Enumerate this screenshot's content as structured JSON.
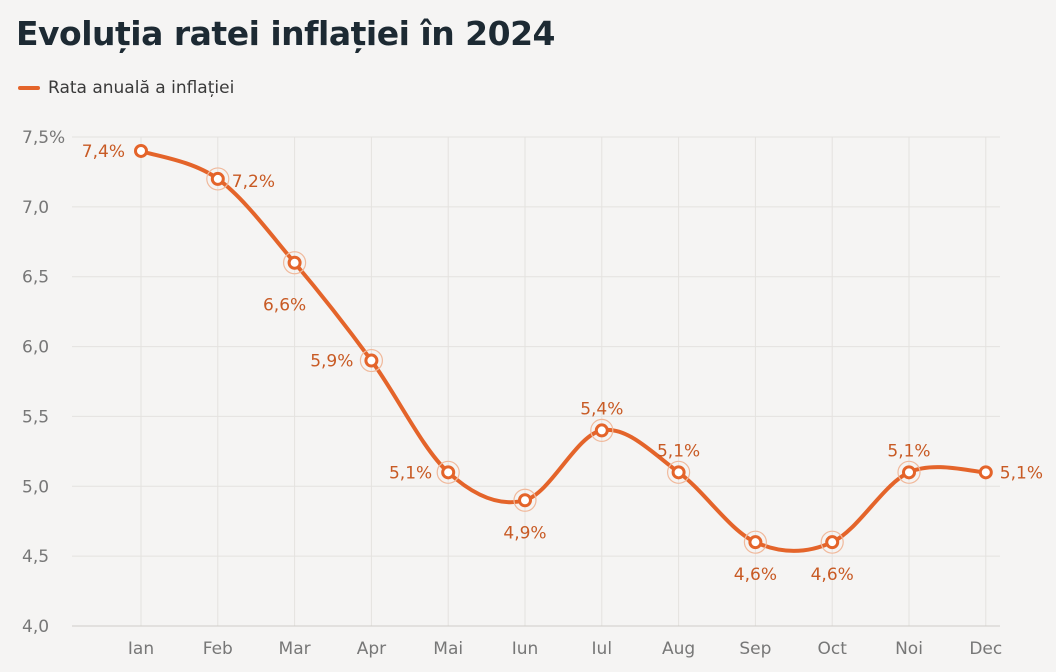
{
  "chart_data": {
    "type": "line",
    "title": "Evoluția ratei inflației în 2024",
    "categories": [
      "Ian",
      "Feb",
      "Mar",
      "Apr",
      "Mai",
      "Iun",
      "Iul",
      "Aug",
      "Sep",
      "Oct",
      "Noi",
      "Dec"
    ],
    "series": [
      {
        "name": "Rata anuală a inflației",
        "values": [
          7.4,
          7.2,
          6.6,
          5.9,
          5.1,
          4.9,
          5.4,
          5.1,
          4.6,
          4.6,
          5.1,
          5.1
        ],
        "labels": [
          "7,4%",
          "7,2%",
          "6,6%",
          "5,9%",
          "5,1%",
          "4,9%",
          "5,4%",
          "5,1%",
          "4,6%",
          "4,6%",
          "5,1%",
          "5,1%"
        ],
        "color": "#e4642a"
      }
    ],
    "ylim": [
      4.0,
      7.5
    ],
    "yticks": [
      4.0,
      4.5,
      5.0,
      5.5,
      6.0,
      6.5,
      7.0,
      7.5
    ],
    "ytick_labels": [
      "4,0",
      "4,5",
      "5,0",
      "5,5",
      "6,0",
      "6,5",
      "7,0",
      "7,5%"
    ],
    "grid": true,
    "legend_position": "top-left"
  }
}
